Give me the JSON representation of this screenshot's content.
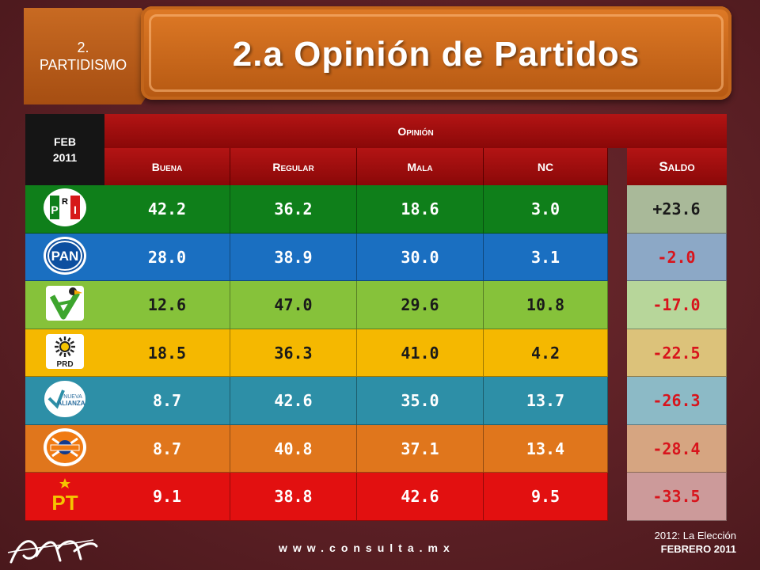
{
  "section": {
    "line1": "2.",
    "line2": "PARTIDISMO"
  },
  "title": "2.a Opinión de Partidos",
  "date_label": {
    "line1": "FEB",
    "line2": "2011"
  },
  "header": {
    "group": "Opinión",
    "columns": [
      "Buena",
      "Regular",
      "Mala",
      "NC"
    ],
    "saldo": "Saldo"
  },
  "rows": [
    {
      "party": "PRI",
      "logo": "pri-logo",
      "buena": "42.2",
      "regular": "36.2",
      "mala": "18.6",
      "nc": "3.0",
      "saldo": "+23.6",
      "color": "#0f7f1a",
      "saldo_bg": "#a9b999",
      "saldo_color": "#1a1a1a"
    },
    {
      "party": "PAN",
      "logo": "pan-logo",
      "buena": "28.0",
      "regular": "38.9",
      "mala": "30.0",
      "nc": "3.1",
      "saldo": "-2.0",
      "color": "#1a6fc1",
      "saldo_bg": "#8ca8c6",
      "saldo_color": "#d8141c"
    },
    {
      "party": "PVEM",
      "logo": "pvem-logo",
      "buena": "12.6",
      "regular": "47.0",
      "mala": "29.6",
      "nc": "10.8",
      "saldo": "-17.0",
      "color": "#86c23a",
      "saldo_bg": "#b7d69a",
      "saldo_color": "#d8141c"
    },
    {
      "party": "PRD",
      "logo": "prd-logo",
      "buena": "18.5",
      "regular": "36.3",
      "mala": "41.0",
      "nc": "4.2",
      "saldo": "-22.5",
      "color": "#f5b800",
      "saldo_bg": "#dcc27a",
      "saldo_color": "#d8141c"
    },
    {
      "party": "Nueva Alianza",
      "logo": "nueva-alianza-logo",
      "buena": "8.7",
      "regular": "42.6",
      "mala": "35.0",
      "nc": "13.7",
      "saldo": "-26.3",
      "color": "#2d8fa7",
      "saldo_bg": "#8cbac6",
      "saldo_color": "#d8141c"
    },
    {
      "party": "Convergencia",
      "logo": "convergencia-logo",
      "buena": "8.7",
      "regular": "40.8",
      "mala": "37.1",
      "nc": "13.4",
      "saldo": "-28.4",
      "color": "#e0761c",
      "saldo_bg": "#d6a581",
      "saldo_color": "#d8141c"
    },
    {
      "party": "PT",
      "logo": "pt-logo",
      "buena": "9.1",
      "regular": "38.8",
      "mala": "42.6",
      "nc": "9.5",
      "saldo": "-33.5",
      "color": "#e21010",
      "saldo_bg": "#cc9a9a",
      "saldo_color": "#d8141c"
    }
  ],
  "footer": {
    "url": "www.consulta.mx",
    "right_line1": "2012: La Elección",
    "right_line2": "FEBRERO 2011"
  }
}
